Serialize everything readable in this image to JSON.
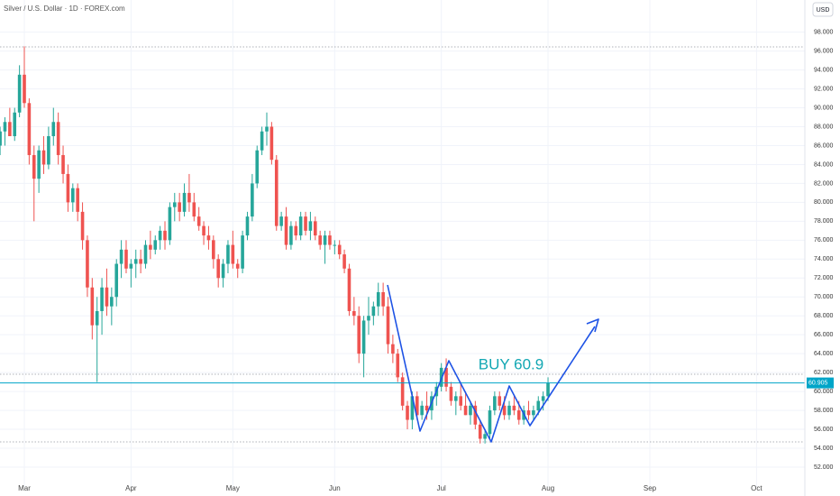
{
  "chart_data": {
    "type": "candlestick",
    "title": "Silver / U.S. Dollar · 1D · FOREX.com",
    "currency": "USD",
    "annotation": "BUY 60.9",
    "up_color": "#26a69a",
    "down_color": "#ef5350",
    "price_line_color": "#00a5c8",
    "grid": true,
    "last_price": 60.905,
    "ylim": [
      49.9,
      101.4
    ],
    "yticks": [
      {
        "value": 52,
        "label": "52.000"
      },
      {
        "value": 54,
        "label": "54.000"
      },
      {
        "value": 56,
        "label": "56.000"
      },
      {
        "value": 58,
        "label": "58.000"
      },
      {
        "value": 60,
        "label": "60.000"
      },
      {
        "value": 62,
        "label": "62.000"
      },
      {
        "value": 64,
        "label": "64.000"
      },
      {
        "value": 66,
        "label": "66.000"
      },
      {
        "value": 68,
        "label": "68.000"
      },
      {
        "value": 70,
        "label": "70.000"
      },
      {
        "value": 72,
        "label": "72.000"
      },
      {
        "value": 74,
        "label": "74.000"
      },
      {
        "value": 76,
        "label": "76.000"
      },
      {
        "value": 78,
        "label": "78.000"
      },
      {
        "value": 80,
        "label": "80.000"
      },
      {
        "value": 82,
        "label": "82.000"
      },
      {
        "value": 84,
        "label": "84.000"
      },
      {
        "value": 86,
        "label": "86.000"
      },
      {
        "value": 88,
        "label": "88.000"
      },
      {
        "value": 90,
        "label": "90.000"
      },
      {
        "value": 92,
        "label": "92.000"
      },
      {
        "value": 94,
        "label": "94.000"
      },
      {
        "value": 96,
        "label": "96.000"
      },
      {
        "value": 98,
        "label": "98.000"
      }
    ],
    "categories": [
      null,
      null,
      null,
      null,
      null,
      "Mar",
      null,
      null,
      null,
      null,
      null,
      null,
      null,
      null,
      null,
      null,
      null,
      null,
      null,
      null,
      null,
      null,
      null,
      null,
      null,
      null,
      null,
      "Apr",
      null,
      null,
      null,
      null,
      null,
      null,
      null,
      null,
      null,
      null,
      null,
      null,
      null,
      null,
      null,
      null,
      null,
      null,
      null,
      null,
      "May",
      null,
      null,
      null,
      null,
      null,
      null,
      null,
      null,
      null,
      null,
      null,
      null,
      null,
      null,
      null,
      null,
      null,
      null,
      null,
      null,
      "Jun",
      null,
      null,
      null,
      null,
      null,
      null,
      null,
      null,
      null,
      null,
      null,
      null,
      null,
      null,
      null,
      null,
      null,
      null,
      null,
      null,
      null,
      "Jul",
      null,
      null,
      null,
      null,
      null,
      null,
      null,
      null,
      null,
      null,
      null,
      null,
      null,
      null,
      null,
      null,
      null,
      null,
      null,
      null,
      null,
      "Aug",
      null,
      null,
      null,
      null,
      null,
      null,
      null,
      null,
      null,
      null,
      null,
      null,
      null,
      null,
      null,
      null,
      null,
      null,
      null,
      null,
      "Sep",
      null,
      null,
      null,
      null,
      null,
      null,
      null,
      null,
      null,
      null,
      null,
      null,
      null,
      null,
      null,
      null,
      null,
      null,
      null,
      null,
      null,
      "Oct",
      null,
      null,
      null
    ],
    "open": [
      86,
      87.5,
      88.5,
      87,
      89.5,
      93.5,
      90.5,
      85,
      82.5,
      85.5,
      84,
      87,
      88.5,
      85,
      83,
      80,
      81.5,
      79,
      76,
      71,
      67,
      68.5,
      71,
      69,
      70,
      73.5,
      75,
      73,
      73.5,
      74,
      73.5,
      75.5,
      75,
      76,
      77,
      76,
      79.5,
      80,
      79,
      81,
      80,
      78.5,
      77.5,
      76.5,
      76,
      74,
      72,
      73.5,
      75.5,
      73.5,
      73,
      76.5,
      78.5,
      82,
      85.5,
      87.5,
      88,
      84.5,
      77.5,
      78.5,
      75.5,
      77.5,
      76.5,
      78.5,
      77,
      78,
      76.5,
      75.5,
      76.5,
      75.5,
      75.5,
      74.5,
      73,
      68.5,
      68,
      64,
      67.5,
      68,
      69,
      70.5,
      69,
      65,
      64,
      61.5,
      58.5,
      57,
      59.5,
      57.5,
      58.5,
      58,
      59.5,
      60.5,
      62.5,
      60.5,
      59,
      59.5,
      58.5,
      57.5,
      58.5,
      56.5,
      55,
      55.5,
      58,
      59.5,
      58.5,
      57.5,
      58.5,
      58,
      57,
      58,
      57.5,
      58,
      59,
      59.5,
      null,
      null,
      null,
      null,
      null,
      null,
      null,
      null,
      null,
      null,
      null,
      null,
      null,
      null,
      null,
      null,
      null,
      null,
      null,
      null,
      null,
      null,
      null,
      null,
      null,
      null,
      null,
      null,
      null,
      null,
      null,
      null,
      null,
      null,
      null,
      null,
      null,
      null,
      null,
      null,
      null,
      null,
      null,
      null,
      null,
      null
    ],
    "high": [
      88,
      89,
      90,
      90,
      94.5,
      96.5,
      91,
      86,
      86,
      87,
      88,
      90,
      89.5,
      86,
      84,
      82,
      82,
      80,
      76.5,
      72,
      70,
      72,
      73,
      71,
      74,
      76,
      76,
      74,
      75,
      75,
      76,
      77,
      76.5,
      77.5,
      78,
      80,
      81,
      81,
      82,
      83,
      81,
      79.5,
      78,
      77.5,
      76.5,
      74.5,
      74,
      76,
      77,
      74,
      77,
      79,
      83,
      86,
      88,
      89.5,
      88.5,
      85,
      79,
      79.5,
      78,
      78,
      79,
      79,
      79,
      78.5,
      77,
      77,
      77,
      76,
      76,
      75,
      73.5,
      70,
      69,
      68,
      70,
      69.5,
      71.5,
      71.5,
      70,
      66,
      64.5,
      62,
      59,
      60,
      60,
      59,
      60,
      60,
      61,
      63,
      63.5,
      61,
      60,
      61,
      60,
      59,
      59,
      57,
      56,
      58.5,
      60,
      60,
      59.5,
      59,
      59.5,
      59,
      58.5,
      59,
      58.5,
      59.5,
      60,
      61.5,
      null,
      null,
      null,
      null,
      null,
      null,
      null,
      null,
      null,
      null,
      null,
      null,
      null,
      null,
      null,
      null,
      null,
      null,
      null,
      null,
      null,
      null,
      null,
      null,
      null,
      null,
      null,
      null,
      null,
      null,
      null,
      null,
      null,
      null,
      null,
      null,
      null,
      null,
      null,
      null,
      null,
      null,
      null,
      null,
      null,
      null
    ],
    "low": [
      85,
      86,
      87,
      86.5,
      89,
      90,
      84,
      78,
      81,
      83,
      83.5,
      86,
      84,
      82,
      79,
      79,
      78,
      75,
      70,
      65.5,
      61,
      66,
      68,
      67,
      69,
      72,
      72.5,
      71,
      72,
      72.5,
      73,
      74,
      74.5,
      75,
      75,
      75.5,
      78,
      78,
      78.5,
      79,
      78,
      77,
      75.5,
      75,
      73,
      71,
      71,
      72.5,
      73,
      72,
      72.5,
      76,
      78,
      81.5,
      85,
      86,
      84,
      77,
      77,
      75,
      75,
      76,
      76,
      76.5,
      76,
      76,
      75,
      73.5,
      75,
      74.5,
      74,
      72.5,
      68,
      67,
      63,
      61.5,
      66,
      67,
      68,
      68,
      64,
      63,
      61,
      58,
      56,
      56,
      57,
      57,
      57,
      57,
      58.5,
      60,
      60,
      58.5,
      57.5,
      58,
      57.5,
      56.5,
      56,
      54.5,
      54.5,
      55,
      57.5,
      58,
      57,
      57,
      57.5,
      56.5,
      56.5,
      57,
      57,
      57.5,
      58,
      59,
      null,
      null,
      null,
      null,
      null,
      null,
      null,
      null,
      null,
      null,
      null,
      null,
      null,
      null,
      null,
      null,
      null,
      null,
      null,
      null,
      null,
      null,
      null,
      null,
      null,
      null,
      null,
      null,
      null,
      null,
      null,
      null,
      null,
      null,
      null,
      null,
      null,
      null,
      null,
      null,
      null,
      null,
      null,
      null,
      null,
      null
    ],
    "close": [
      87.5,
      88.5,
      87,
      89.5,
      93.5,
      90.5,
      85,
      82.5,
      85.5,
      84,
      87,
      88.5,
      85,
      83,
      80,
      81.5,
      79,
      76,
      71,
      67,
      68.5,
      71,
      69,
      70,
      73.5,
      75,
      73,
      73.5,
      74,
      73.5,
      75.5,
      75,
      76,
      77,
      76,
      79.5,
      80,
      79,
      81,
      80,
      78.5,
      77.5,
      76.5,
      76,
      74,
      72,
      73.5,
      75.5,
      73.5,
      73,
      76.5,
      78.5,
      82,
      85.5,
      87.5,
      88,
      84.5,
      77.5,
      78.5,
      75.5,
      77.5,
      76.5,
      78.5,
      77,
      78,
      76.5,
      75.5,
      76.5,
      75.5,
      75.5,
      74.5,
      73,
      68.5,
      68,
      64,
      67.5,
      68,
      69,
      70.5,
      69,
      65,
      64,
      61.5,
      58.5,
      57,
      59.5,
      57.5,
      58.5,
      58,
      59.5,
      60.5,
      62.5,
      60.5,
      59,
      59.5,
      58.5,
      57.5,
      58.5,
      56.5,
      55,
      55.5,
      58,
      59.5,
      58.5,
      57.5,
      58.5,
      58,
      57,
      58,
      57.5,
      58,
      59,
      59.5,
      60.905,
      null,
      null,
      null,
      null,
      null,
      null,
      null,
      null,
      null,
      null,
      null,
      null,
      null,
      null,
      null,
      null,
      null,
      null,
      null,
      null,
      null,
      null,
      null,
      null,
      null,
      null,
      null,
      null,
      null,
      null,
      null,
      null,
      null,
      null,
      null,
      null,
      null,
      null,
      null,
      null,
      null,
      null,
      null,
      null,
      null,
      null
    ]
  }
}
